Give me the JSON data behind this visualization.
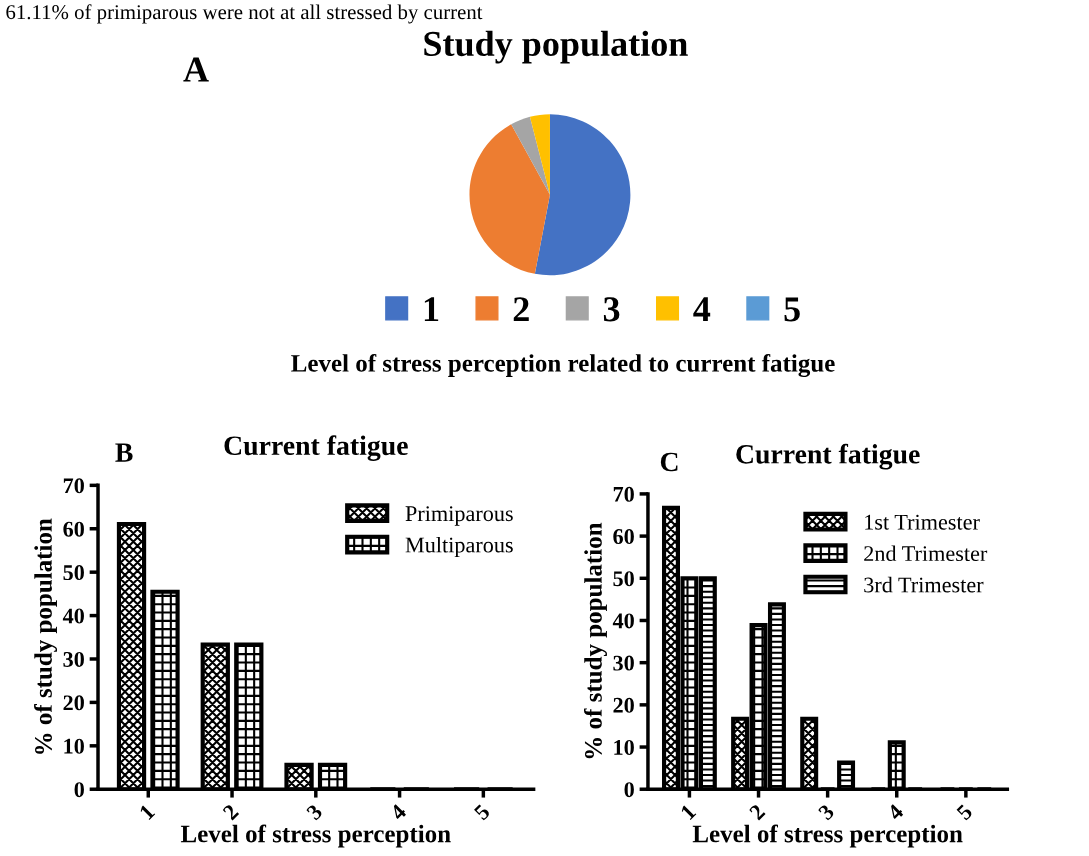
{
  "chart_data": [
    {
      "type": "pie",
      "title": "Study population",
      "xlabel": "Level of stress perception related to current fatigue",
      "annotations": [
        "A",
        "61.11% of primiparous were not at all stressed by current"
      ],
      "categories": [
        "1",
        "2",
        "3",
        "4",
        "5"
      ],
      "values": [
        53,
        39,
        4,
        4,
        0
      ],
      "colors": [
        "#4472c4",
        "#ed7d31",
        "#a5a5a5",
        "#ffc000",
        "#5b9bd5"
      ],
      "legend": "bottom"
    },
    {
      "type": "bar",
      "title": "Current fatigue",
      "xlabel": "Level of stress perception",
      "ylabel": "% of study population",
      "annotations": [
        "B"
      ],
      "categories": [
        "1",
        "2",
        "3",
        "4",
        "5"
      ],
      "series": [
        {
          "name": "Primiparous",
          "color": "#000000",
          "values": [
            61.1,
            33.3,
            5.6,
            0,
            0
          ]
        },
        {
          "name": "Multiparous",
          "color": "#000000",
          "values": [
            45.5,
            33.3,
            5.6,
            0,
            0
          ]
        }
      ],
      "ylim": [
        0,
        70
      ],
      "yticks": [
        0,
        10,
        20,
        30,
        40,
        50,
        60,
        70
      ],
      "legend": "top right",
      "grid": false
    },
    {
      "type": "bar",
      "title": "Current fatigue",
      "xlabel": "Level of stress perception",
      "ylabel": "% of study population",
      "annotations": [
        "C"
      ],
      "categories": [
        "1",
        "2",
        "3",
        "4",
        "5"
      ],
      "series": [
        {
          "name": "1st Trimester",
          "color": "#000000",
          "values": [
            66.7,
            16.7,
            16.7,
            0,
            0
          ]
        },
        {
          "name": "2nd Trimester",
          "color": "#000000",
          "values": [
            50,
            38.9,
            0,
            11.1,
            0
          ]
        },
        {
          "name": "3rd Trimester",
          "color": "#000000",
          "values": [
            50,
            43.8,
            6.3,
            0,
            0
          ]
        }
      ],
      "ylim": [
        0,
        70
      ],
      "yticks": [
        0,
        10,
        20,
        30,
        40,
        50,
        60,
        70
      ],
      "legend": "top right",
      "grid": false
    }
  ]
}
